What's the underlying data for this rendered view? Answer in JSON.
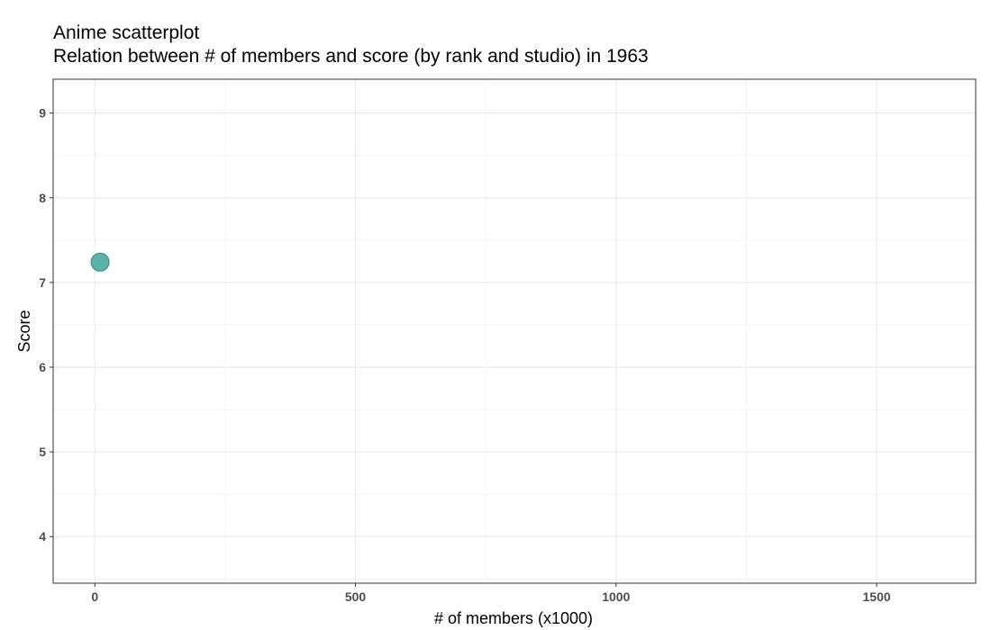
{
  "chart_data": {
    "type": "scatter",
    "title": "Anime scatterplot",
    "subtitle": "Relation between # of members and score (by rank and studio) in 1963",
    "xlabel": "# of members (x1000)",
    "ylabel": "Score",
    "xlim": [
      -80,
      1690
    ],
    "ylim": [
      3.45,
      9.4
    ],
    "x_ticks": [
      0,
      500,
      1000,
      1500
    ],
    "y_ticks": [
      4,
      5,
      6,
      7,
      8,
      9
    ],
    "grid": true,
    "legend": "none",
    "point_color": "#4ca89e",
    "point_stroke": "#2f8a80",
    "points": [
      {
        "x": 10,
        "y": 7.24
      }
    ]
  }
}
